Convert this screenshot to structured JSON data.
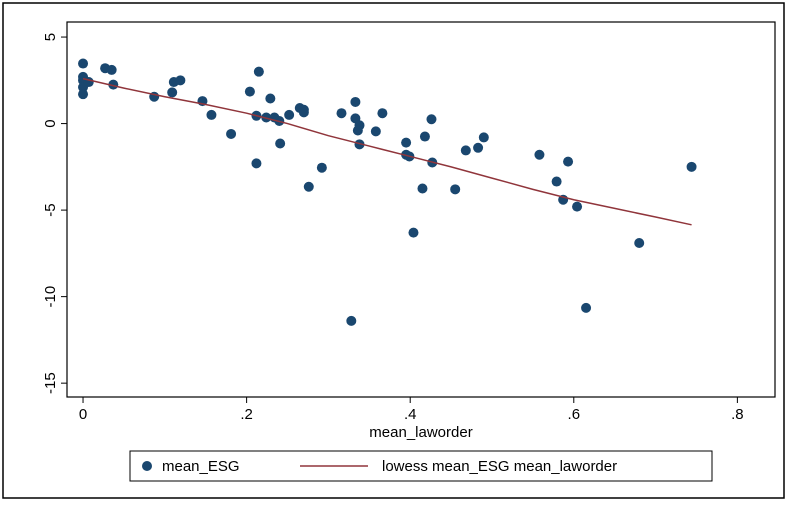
{
  "chart_data": {
    "type": "scatter",
    "x_label": "mean_laworder",
    "xlim": [
      -0.0196,
      0.846
    ],
    "ylim": [
      -15.8,
      5.87
    ],
    "xticks": [
      0,
      {
        "value": 0.2,
        "label": ".2"
      },
      {
        "value": 0.4,
        "label": ".4"
      },
      {
        "value": 0.6,
        "label": ".6"
      },
      {
        "value": 0.8,
        "label": ".8"
      }
    ],
    "yticks": [
      5,
      0,
      -5,
      -10,
      -15
    ],
    "grid": false,
    "series": [
      {
        "name": "mean_ESG",
        "type": "scatter",
        "color": "#1a476f",
        "x": [
          0,
          0,
          0,
          0,
          0,
          0.007,
          0.027,
          0.035,
          0.037,
          0.087,
          0.109,
          0.111,
          0.119,
          0.146,
          0.157,
          0.181,
          0.204,
          0.215,
          0.212,
          0.212,
          0.229,
          0.224,
          0.234,
          0.24,
          0.241,
          0.252,
          0.265,
          0.27,
          0.27,
          0.276,
          0.292,
          0.316,
          0.333,
          0.333,
          0.338,
          0.336,
          0.338,
          0.328,
          0.358,
          0.366,
          0.395,
          0.395,
          0.399,
          0.415,
          0.418,
          0.426,
          0.427,
          0.404,
          0.455,
          0.468,
          0.483,
          0.49,
          0.558,
          0.579,
          0.587,
          0.593,
          0.604,
          0.615,
          0.68,
          0.744
        ],
        "values": [
          3.47,
          2.7,
          2.5,
          2.1,
          1.7,
          2.4,
          3.2,
          3.1,
          2.25,
          1.55,
          1.8,
          2.4,
          2.5,
          1.3,
          0.5,
          -0.6,
          1.85,
          3.0,
          0.45,
          -2.3,
          1.45,
          0.35,
          0.35,
          0.15,
          -1.15,
          0.5,
          0.9,
          0.8,
          0.65,
          -3.65,
          -2.55,
          0.6,
          1.25,
          0.3,
          -0.1,
          -0.4,
          -1.2,
          -11.4,
          -0.45,
          0.6,
          -1.1,
          -1.8,
          -1.9,
          -3.75,
          -0.75,
          0.25,
          -2.25,
          -6.3,
          -3.8,
          -1.55,
          -1.4,
          -0.8,
          -1.8,
          -3.35,
          -4.4,
          -2.2,
          -4.8,
          -10.65,
          -6.9,
          -2.5
        ]
      },
      {
        "name": "lowess mean_ESG mean_laworder",
        "type": "line",
        "color": "#90353b",
        "x": [
          0,
          0.05,
          0.1,
          0.15,
          0.2,
          0.25,
          0.3,
          0.35,
          0.4,
          0.45,
          0.5,
          0.55,
          0.6,
          0.65,
          0.7,
          0.744
        ],
        "values": [
          2.6,
          2.05,
          1.55,
          1.1,
          0.6,
          0.0,
          -0.7,
          -1.3,
          -1.9,
          -2.5,
          -3.15,
          -3.8,
          -4.4,
          -4.9,
          -5.4,
          -5.85
        ]
      }
    ]
  }
}
